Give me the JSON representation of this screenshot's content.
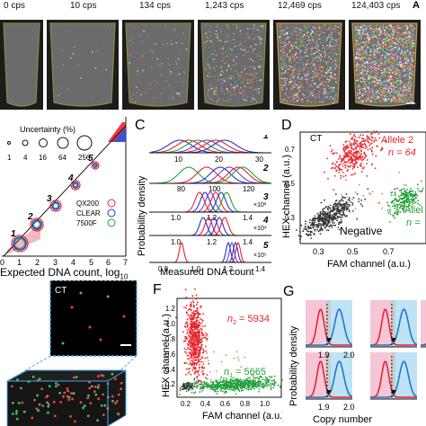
{
  "top_panel": {
    "cps_labels": [
      "0 cps",
      "10 cps",
      "134 cps",
      "1,243 cps",
      "12,469 cps",
      "124,403 cps"
    ],
    "corner_letter": "A"
  },
  "panel_b": {
    "legend_title": "Uncertainty (%)",
    "legend_sizes": [
      "1",
      "4",
      "16",
      "64",
      "256"
    ],
    "point_labels": [
      "1",
      "2",
      "3",
      "4",
      "5"
    ],
    "series": [
      "QX200",
      "CLEAR",
      "7500F"
    ],
    "series_colors": {
      "QX200": "#e8252b",
      "CLEAR": "#2236c8",
      "7500F": "#22a03c"
    },
    "xlabel": "Expected DNA count, log",
    "xlabel_sub": "10",
    "xticks": [
      "0",
      "1",
      "2",
      "3",
      "4",
      "5",
      "6",
      "7"
    ]
  },
  "panel_c": {
    "letter": "C",
    "ylabel": "Probability density",
    "xlabel": "Measured DNA count",
    "row1_ticks": [
      "10",
      "20",
      "30"
    ],
    "row2_ticks": [
      "80",
      "100",
      "120"
    ],
    "row3_ticks": [
      "1.0",
      "1.2",
      "1.4"
    ],
    "row4_ticks": [
      "1.0",
      "1.2",
      "1.4"
    ],
    "row5_ticks": [
      "0.8",
      "1.0",
      "1.2",
      "1.4"
    ],
    "multipliers": [
      "×10³",
      "×10⁴",
      "×10⁵"
    ],
    "row_numbers": [
      "1",
      "2",
      "3",
      "4",
      "5"
    ]
  },
  "panel_d": {
    "letter": "D",
    "tag": "CT",
    "ylabel": "HEX channel (a.u.)",
    "xlabel": "FAM channel (a.u.)",
    "xticks": [
      "0.3",
      "0.5",
      "0.7"
    ],
    "yticks": [
      "0.3",
      "0.5",
      "0.7"
    ],
    "allele2": "Allele 2",
    "allele2_n": "n = 64",
    "allele1": "Allel",
    "allele1_n": "n =",
    "negative": "Negative"
  },
  "panel_e": {
    "tag": "CT"
  },
  "panel_f": {
    "letter": "F",
    "ylabel": "HEX channel (a.u.)",
    "xlabel": "FAM channel (a.u.)",
    "xticks": [
      "0.2",
      "0.4",
      "0.6",
      "0.8",
      "1.0"
    ],
    "yticks": [
      "0.2",
      "0.4",
      "0.6",
      "0.8",
      "1.0",
      "1.2"
    ],
    "n2_label": "n",
    "n2_sub": "2",
    "n2_value": "= 5934",
    "n1_label": "n",
    "n1_sub": "1",
    "n1_value": "= 5665"
  },
  "panel_g": {
    "letter": "G",
    "ylabel": "Probability density",
    "xlabel": "Copy number",
    "tick_a": "1.9",
    "tick_b": "2.0"
  }
}
